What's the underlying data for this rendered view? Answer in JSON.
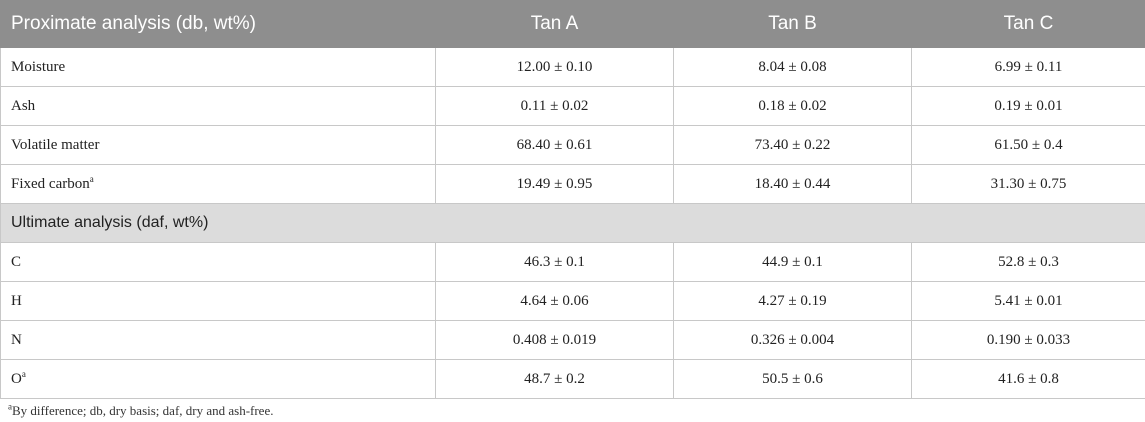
{
  "table": {
    "header": [
      "Proximate analysis (db, wt%)",
      "Tan A",
      "Tan B",
      "Tan C"
    ],
    "proximate_rows": [
      {
        "label": "Moisture",
        "sup": "",
        "values": [
          "12.00 ± 0.10",
          "8.04 ± 0.08",
          "6.99 ± 0.11"
        ]
      },
      {
        "label": "Ash",
        "sup": "",
        "values": [
          "0.11 ± 0.02",
          "0.18 ± 0.02",
          "0.19 ± 0.01"
        ]
      },
      {
        "label": "Volatile matter",
        "sup": "",
        "values": [
          "68.40 ± 0.61",
          "73.40 ± 0.22",
          "61.50 ± 0.4"
        ]
      },
      {
        "label": "Fixed carbon",
        "sup": "a",
        "values": [
          "19.49 ± 0.95",
          "18.40 ± 0.44",
          "31.30 ± 0.75"
        ]
      }
    ],
    "section_title": "Ultimate analysis (daf, wt%)",
    "ultimate_rows": [
      {
        "label": "C",
        "sup": "",
        "values": [
          "46.3 ± 0.1",
          "44.9 ± 0.1",
          "52.8 ± 0.3"
        ]
      },
      {
        "label": "H",
        "sup": "",
        "values": [
          "4.64 ± 0.06",
          "4.27 ± 0.19",
          "5.41 ± 0.01"
        ]
      },
      {
        "label": "N",
        "sup": "",
        "values": [
          "0.408 ± 0.019",
          "0.326 ± 0.004",
          "0.190 ± 0.033"
        ]
      },
      {
        "label": "O",
        "sup": "a",
        "values": [
          "48.7 ± 0.2",
          "50.5 ± 0.6",
          "41.6 ± 0.8"
        ]
      }
    ]
  },
  "footnote": {
    "sup": "a",
    "text": "By difference; db, dry basis; daf, dry and ash-free."
  }
}
